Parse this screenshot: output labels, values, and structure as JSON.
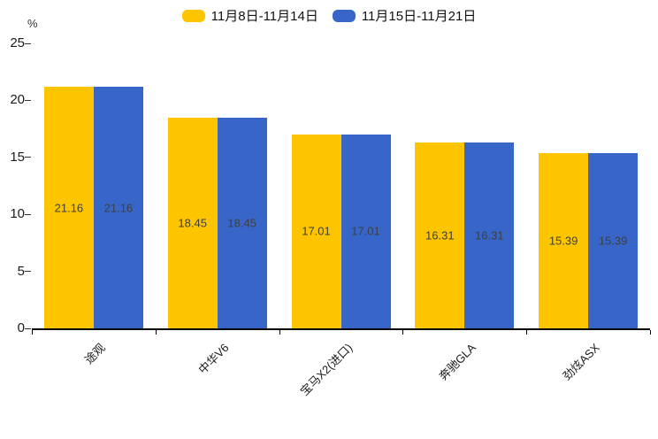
{
  "chart_data": {
    "type": "bar",
    "title": "",
    "categories": [
      "途观",
      "中华V6",
      "宝马X2(进口)",
      "奔驰GLA",
      "劲炫ASX"
    ],
    "series": [
      {
        "name": "11月8日-11月14日",
        "color": "#FDC500",
        "values": [
          21.16,
          18.45,
          17.01,
          16.31,
          15.39
        ]
      },
      {
        "name": "11月15日-11月21日",
        "color": "#3766C8",
        "values": [
          21.16,
          18.45,
          17.01,
          16.31,
          15.39
        ]
      }
    ],
    "xlabel": "",
    "ylabel": "%",
    "ylim": [
      0,
      25
    ],
    "yticks": [
      0,
      5,
      10,
      15,
      20,
      25
    ],
    "grid": false,
    "legend_position": "top-center",
    "value_labels_shown": true,
    "value_label_color": "#3f3f3f",
    "axis_color": "#000000"
  }
}
